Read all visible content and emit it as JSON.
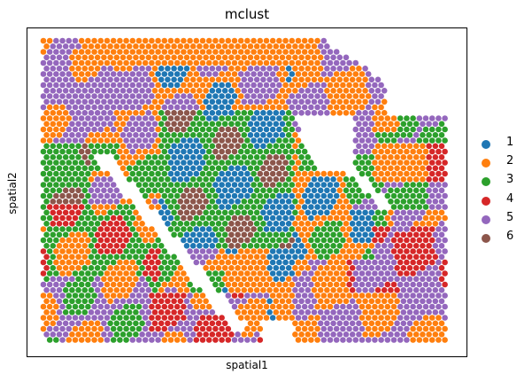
{
  "chart_data": {
    "type": "scatter",
    "title": "mclust",
    "xlabel": "spatial1",
    "ylabel": "spatial2",
    "grid": false,
    "legend_position": "right",
    "legend": [
      {
        "label": "1",
        "color": "#1f77b4"
      },
      {
        "label": "2",
        "color": "#ff7f0e"
      },
      {
        "label": "3",
        "color": "#2ca02c"
      },
      {
        "label": "4",
        "color": "#d62728"
      },
      {
        "label": "5",
        "color": "#9467bd"
      },
      {
        "label": "6",
        "color": "#8c564b"
      }
    ]
  }
}
